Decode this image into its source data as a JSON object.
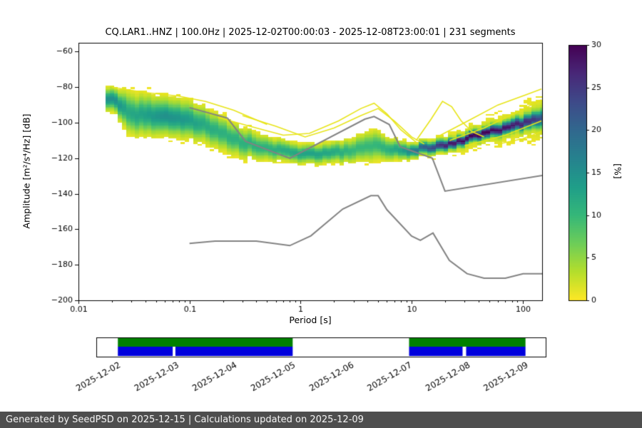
{
  "chart_data": {
    "type": "heatmap",
    "title": "CQ.LAR1..HNZ | 100.0Hz | 2025-12-02T00:00:03 - 2025-12-08T23:00:01 | 231 segments",
    "xlabel": "Period [s]",
    "ylabel": "Amplitude [m²/s⁴/Hz] [dB]",
    "x_scale": "log",
    "xlim": [
      0.01,
      150
    ],
    "ylim": [
      -200,
      -55
    ],
    "x_ticks": [
      0.01,
      0.1,
      1,
      10,
      100
    ],
    "x_tick_labels": [
      "0.01",
      "0.1",
      "1",
      "10",
      "100"
    ],
    "y_ticks": [
      -200,
      -180,
      -160,
      -140,
      -120,
      -100,
      -80,
      -60
    ],
    "colorbar": {
      "label": "[%]",
      "min": 0,
      "max": 30,
      "ticks": [
        0,
        5,
        10,
        15,
        20,
        25,
        30
      ],
      "colormap": "viridis_r"
    },
    "ppsd_columns": {
      "fields": [
        "period_s",
        "mode_db",
        "sigma_db",
        "peak_pct",
        "halo_sigma_db",
        "halo_peak_pct"
      ],
      "rows": [
        [
          0.0175,
          -86,
          3.2,
          15,
          0,
          0
        ],
        [
          0.022,
          -88,
          3.6,
          15,
          0,
          0
        ],
        [
          0.028,
          -95,
          6.0,
          12,
          0,
          0
        ],
        [
          0.04,
          -96,
          6.0,
          13,
          0,
          0
        ],
        [
          0.06,
          -96,
          5.5,
          15,
          0,
          0
        ],
        [
          0.09,
          -98,
          5.5,
          14,
          0,
          0
        ],
        [
          0.13,
          -101,
          5.2,
          12,
          0,
          0
        ],
        [
          0.2,
          -106,
          5.0,
          11,
          0,
          0
        ],
        [
          0.3,
          -111,
          4.5,
          11,
          0,
          0
        ],
        [
          0.5,
          -114.5,
          3.5,
          11,
          0,
          0
        ],
        [
          0.8,
          -117,
          2.9,
          12,
          0,
          0
        ],
        [
          1.2,
          -117.6,
          2.8,
          13,
          0,
          0
        ],
        [
          2,
          -117,
          3.0,
          12,
          0,
          0
        ],
        [
          3,
          -115.5,
          3.6,
          10,
          0,
          0
        ],
        [
          4.5,
          -113,
          4.6,
          10,
          0,
          0
        ],
        [
          6,
          -114.5,
          3.4,
          11,
          0,
          0
        ],
        [
          8,
          -115.5,
          2.8,
          13,
          0,
          0
        ],
        [
          10,
          -115.5,
          2.2,
          17,
          0,
          0
        ],
        [
          15,
          -114,
          1.9,
          22,
          5,
          1.2
        ],
        [
          20,
          -112.5,
          1.8,
          26,
          5,
          1.5
        ],
        [
          30,
          -109.5,
          1.8,
          28,
          6,
          1.8
        ],
        [
          50,
          -105.5,
          2.0,
          28,
          6.5,
          2.0
        ],
        [
          80,
          -102,
          2.2,
          26,
          7.5,
          2.0
        ],
        [
          120,
          -99,
          2.5,
          24,
          8.5,
          2.2
        ],
        [
          150,
          -97,
          3.0,
          20,
          9.5,
          2.5
        ]
      ]
    },
    "outlier_psd_lines": {
      "color": "#e7e419",
      "lines": [
        [
          [
            0.18,
            -97
          ],
          [
            0.35,
            -102
          ],
          [
            0.7,
            -107
          ],
          [
            1.2,
            -106
          ],
          [
            2.2,
            -99
          ],
          [
            3.5,
            -92
          ],
          [
            4.6,
            -89
          ],
          [
            6,
            -95
          ],
          [
            8,
            -104
          ],
          [
            11,
            -111
          ]
        ],
        [
          [
            0.3,
            -96
          ],
          [
            0.6,
            -102
          ],
          [
            1.1,
            -108
          ],
          [
            2,
            -103
          ],
          [
            3.5,
            -96
          ],
          [
            5,
            -92
          ],
          [
            7,
            -99
          ],
          [
            10,
            -108
          ],
          [
            13,
            -112
          ]
        ],
        [
          [
            11,
            -110
          ],
          [
            15,
            -98
          ],
          [
            19,
            -88
          ],
          [
            23,
            -91
          ],
          [
            28,
            -99
          ],
          [
            35,
            -105
          ],
          [
            45,
            -108
          ]
        ],
        [
          [
            17,
            -108
          ],
          [
            30,
            -100
          ],
          [
            60,
            -90
          ],
          [
            110,
            -84
          ],
          [
            148,
            -81
          ]
        ],
        [
          [
            22,
            -110
          ],
          [
            45,
            -103
          ],
          [
            90,
            -94
          ],
          [
            148,
            -87
          ]
        ],
        [
          [
            30,
            -113
          ],
          [
            70,
            -107
          ],
          [
            148,
            -99
          ]
        ],
        [
          [
            60,
            -112
          ],
          [
            100,
            -109
          ],
          [
            148,
            -105
          ]
        ],
        [
          [
            0.02,
            -80
          ],
          [
            0.04,
            -83
          ],
          [
            0.08,
            -85
          ],
          [
            0.14,
            -88
          ],
          [
            0.25,
            -93
          ],
          [
            0.5,
            -101
          ]
        ]
      ]
    },
    "noise_models": {
      "name": "Peterson NLNM / NHNM",
      "color": "#828282",
      "nlnm": [
        [
          0.1,
          -168
        ],
        [
          0.17,
          -166.7
        ],
        [
          0.4,
          -166.7
        ],
        [
          0.8,
          -169.2
        ],
        [
          1.24,
          -163.7
        ],
        [
          2.4,
          -148.6
        ],
        [
          4.3,
          -141.1
        ],
        [
          5,
          -141.1
        ],
        [
          6,
          -149
        ],
        [
          10,
          -163.8
        ],
        [
          12,
          -166.2
        ],
        [
          15.6,
          -162.1
        ],
        [
          21.9,
          -177.5
        ],
        [
          31.6,
          -185
        ],
        [
          45,
          -187.5
        ],
        [
          70,
          -187.5
        ],
        [
          101,
          -185
        ],
        [
          154,
          -185
        ],
        [
          328,
          -187.5
        ]
      ],
      "nhnm": [
        [
          0.1,
          -91.5
        ],
        [
          0.22,
          -97.4
        ],
        [
          0.32,
          -110.5
        ],
        [
          0.8,
          -120
        ],
        [
          3.8,
          -98
        ],
        [
          4.6,
          -96.5
        ],
        [
          6.3,
          -101
        ],
        [
          7.9,
          -113.5
        ],
        [
          15.4,
          -120
        ],
        [
          20,
          -138.5
        ],
        [
          354.8,
          -126
        ]
      ]
    }
  },
  "timeline": {
    "green_color": "#008000",
    "blue_color": "#0000dd",
    "green_segments": [
      [
        0.048,
        0.437
      ],
      [
        0.696,
        0.955
      ]
    ],
    "blue_segments": [
      [
        0.048,
        0.17
      ],
      [
        0.176,
        0.437
      ],
      [
        0.696,
        0.815
      ],
      [
        0.823,
        0.955
      ]
    ],
    "labels": [
      {
        "f": 0.048,
        "text": "2025-12-02"
      },
      {
        "f": 0.178,
        "text": "2025-12-03"
      },
      {
        "f": 0.307,
        "text": "2025-12-04"
      },
      {
        "f": 0.437,
        "text": "2025-12-05"
      },
      {
        "f": 0.567,
        "text": "2025-12-06"
      },
      {
        "f": 0.696,
        "text": "2025-12-07"
      },
      {
        "f": 0.826,
        "text": "2025-12-08"
      },
      {
        "f": 0.955,
        "text": "2025-12-09"
      }
    ]
  },
  "footer": {
    "text": "Generated by SeedPSD on 2025-12-15 | Calculations updated on 2025-12-09",
    "background": "#4e4e4e",
    "color": "#f5f5f5"
  }
}
